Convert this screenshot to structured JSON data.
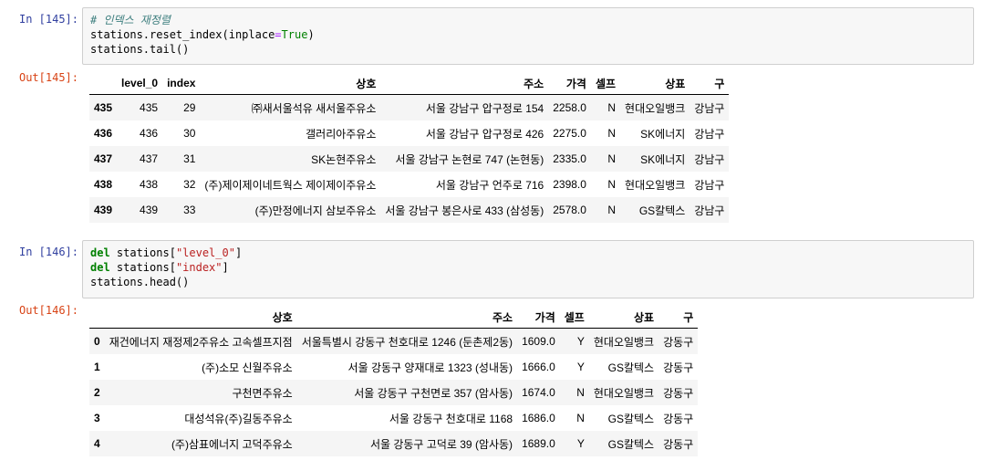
{
  "cells": [
    {
      "in_prompt": "In [145]:",
      "code": {
        "comment": "# 인덱스 재정렬",
        "line2_pre": "stations.reset_index(inplace",
        "line2_op": "=",
        "line2_kw": "True",
        "line2_post": ")",
        "line3": "stations.tail()"
      },
      "out_prompt": "Out[145]:",
      "columns": [
        "",
        "level_0",
        "index",
        "상호",
        "주소",
        "가격",
        "셀프",
        "상표",
        "구"
      ],
      "rows": [
        [
          "435",
          "435",
          "29",
          "㈜새서울석유 새서울주유소",
          "서울 강남구 압구정로 154",
          "2258.0",
          "N",
          "현대오일뱅크",
          "강남구"
        ],
        [
          "436",
          "436",
          "30",
          "갤러리아주유소",
          "서울 강남구 압구정로 426",
          "2275.0",
          "N",
          "SK에너지",
          "강남구"
        ],
        [
          "437",
          "437",
          "31",
          "SK논현주유소",
          "서울 강남구 논현로 747 (논현동)",
          "2335.0",
          "N",
          "SK에너지",
          "강남구"
        ],
        [
          "438",
          "438",
          "32",
          "(주)제이제이네트웍스 제이제이주유소",
          "서울 강남구 언주로 716",
          "2398.0",
          "N",
          "현대오일뱅크",
          "강남구"
        ],
        [
          "439",
          "439",
          "33",
          "(주)만정에너지 삼보주유소",
          "서울 강남구 봉은사로 433 (삼성동)",
          "2578.0",
          "N",
          "GS칼텍스",
          "강남구"
        ]
      ]
    },
    {
      "in_prompt": "In [146]:",
      "code": {
        "l1_kw": "del",
        "l1_pre": " stations[",
        "l1_str": "\"level_0\"",
        "l1_post": "]",
        "l2_kw": "del",
        "l2_pre": " stations[",
        "l2_str": "\"index\"",
        "l2_post": "]",
        "l3": "stations.head()"
      },
      "out_prompt": "Out[146]:",
      "columns": [
        "",
        "상호",
        "주소",
        "가격",
        "셀프",
        "상표",
        "구"
      ],
      "rows": [
        [
          "0",
          "재건에너지 재정제2주유소 고속셀프지점",
          "서울특별시 강동구 천호대로 1246 (둔촌제2동)",
          "1609.0",
          "Y",
          "현대오일뱅크",
          "강동구"
        ],
        [
          "1",
          "(주)소모 신월주유소",
          "서울 강동구 양재대로 1323 (성내동)",
          "1666.0",
          "Y",
          "GS칼텍스",
          "강동구"
        ],
        [
          "2",
          "구천면주유소",
          "서울 강동구 구천면로 357 (암사동)",
          "1674.0",
          "N",
          "현대오일뱅크",
          "강동구"
        ],
        [
          "3",
          "대성석유(주)길동주유소",
          "서울 강동구 천호대로 1168",
          "1686.0",
          "N",
          "GS칼텍스",
          "강동구"
        ],
        [
          "4",
          "(주)삼표에너지 고덕주유소",
          "서울 강동구 고덕로 39 (암사동)",
          "1689.0",
          "Y",
          "GS칼텍스",
          "강동구"
        ]
      ]
    }
  ]
}
